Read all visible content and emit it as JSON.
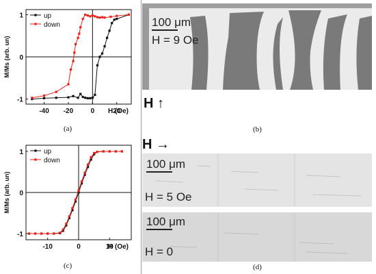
{
  "chart_data": [
    {
      "type": "line",
      "panel": "(a)",
      "xlabel": "H (Oe)",
      "ylabel": "M/Ms (arb. un)",
      "xlim": [
        -55,
        32
      ],
      "ylim": [
        -1.12,
        1.12
      ],
      "x_ticks": [
        -40,
        -20,
        0,
        20
      ],
      "y_ticks": [
        -1,
        0,
        1
      ],
      "legend_position": "top-left",
      "series": [
        {
          "name": "up",
          "color": "#111111",
          "x": [
            -50,
            -40,
            -30,
            -20,
            -16,
            -12,
            -10,
            -8,
            -6,
            -4,
            -2,
            0,
            2,
            4,
            6,
            8,
            10,
            12,
            14,
            16,
            18,
            20,
            30
          ],
          "y": [
            -1.0,
            -0.98,
            -0.97,
            -0.96,
            -0.93,
            -0.97,
            -0.88,
            -0.95,
            -0.97,
            -0.98,
            -0.98,
            -0.97,
            -0.9,
            -0.2,
            0.0,
            0.08,
            0.25,
            0.45,
            0.62,
            0.8,
            0.88,
            0.9,
            1.0
          ]
        },
        {
          "name": "down",
          "color": "#e8221a",
          "x": [
            30,
            20,
            15,
            10,
            8,
            6,
            4,
            2,
            0,
            -2,
            -4,
            -6,
            -8,
            -10,
            -11,
            -12,
            -14,
            -15,
            -16,
            -18,
            -20,
            -30,
            -40,
            -50
          ],
          "y": [
            1.0,
            0.97,
            0.95,
            0.93,
            0.94,
            0.93,
            0.94,
            0.96,
            0.98,
            0.96,
            0.98,
            1.0,
            0.9,
            0.7,
            0.55,
            0.45,
            0.3,
            0.1,
            -0.1,
            -0.3,
            -0.65,
            -0.83,
            -0.92,
            -0.97
          ]
        }
      ]
    },
    {
      "type": "line",
      "panel": "(c)",
      "xlabel": "H (Oe)",
      "ylabel": "M/Ms (arb. un)",
      "xlim": [
        -17,
        17
      ],
      "ylim": [
        -1.15,
        1.15
      ],
      "x_ticks": [
        -10,
        0,
        10
      ],
      "y_ticks": [
        -1,
        0,
        1
      ],
      "legend_position": "top-left",
      "series": [
        {
          "name": "up",
          "color": "#111111",
          "x": [
            -16,
            -14,
            -12,
            -10,
            -8,
            -6,
            -5,
            -4,
            -3,
            -2,
            -1,
            0,
            1,
            2,
            3,
            4,
            5,
            6,
            8,
            10,
            12,
            14
          ],
          "y": [
            -1.0,
            -1.0,
            -1.0,
            -1.0,
            -1.0,
            -0.99,
            -0.93,
            -0.8,
            -0.62,
            -0.43,
            -0.22,
            0.0,
            0.22,
            0.43,
            0.62,
            0.8,
            0.93,
            0.99,
            1.0,
            1.0,
            1.0,
            1.0
          ]
        },
        {
          "name": "down",
          "color": "#e8221a",
          "x": [
            14,
            12,
            10,
            8,
            6,
            5,
            4,
            3,
            2,
            1,
            0,
            -1,
            -2,
            -3,
            -4,
            -5,
            -6,
            -8,
            -10,
            -12,
            -14,
            -16
          ],
          "y": [
            1.0,
            1.0,
            1.0,
            1.0,
            0.99,
            0.96,
            0.86,
            0.68,
            0.48,
            0.27,
            0.05,
            -0.17,
            -0.38,
            -0.58,
            -0.76,
            -0.9,
            -0.98,
            -1.0,
            -1.0,
            -1.0,
            -1.0,
            -1.0
          ]
        }
      ]
    }
  ],
  "panels": {
    "a": "(a)",
    "b": "(b)",
    "c": "(c)",
    "d": "(d)"
  },
  "images": {
    "b": {
      "scale": "100 μm",
      "field": "H = 9 Oe",
      "field_direction_label": "H ↑"
    },
    "d_label": "H →",
    "d_top": {
      "scale": "100 μm",
      "field": "H = 5 Oe"
    },
    "d_bottom": {
      "scale": "100 μm",
      "field": "H = 0"
    }
  },
  "colors": {
    "up": "#111111",
    "down": "#e8221a",
    "domain_dark": "#7a7a7a",
    "domain_light": "#ebebeb"
  }
}
